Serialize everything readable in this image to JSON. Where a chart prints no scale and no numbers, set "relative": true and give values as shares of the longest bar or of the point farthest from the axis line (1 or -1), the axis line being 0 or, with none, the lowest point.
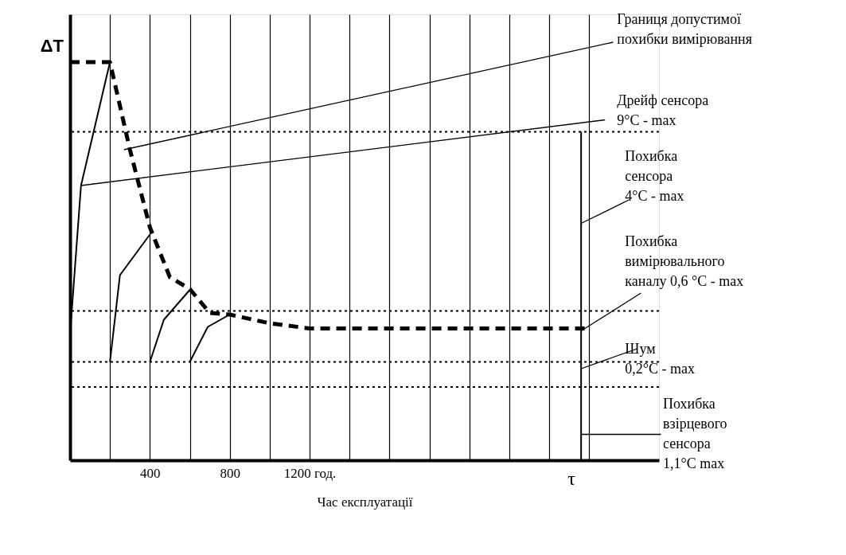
{
  "chart_data": {
    "type": "line",
    "relative": true,
    "xlabel": "Час експлуатації",
    "ylabel": "ΔT",
    "xlim": [
      0,
      2950
    ],
    "xticks": [
      {
        "value": 200,
        "label": null
      },
      400,
      {
        "value": 600,
        "label": null
      },
      800,
      {
        "value": 1000,
        "label": null
      },
      {
        "value": 1200,
        "label": "1200 год."
      },
      {
        "value": 1400,
        "label": null
      },
      {
        "value": 1600,
        "label": null
      },
      {
        "value": 1800,
        "label": null
      },
      {
        "value": 2000,
        "label": null
      },
      {
        "value": 2200,
        "label": null
      },
      {
        "value": 2400,
        "label": null
      },
      {
        "value": 2600,
        "label": null
      }
    ],
    "grid": "x",
    "series": [
      {
        "color": "#000000",
        "line_style": "dashed",
        "x": [
          0,
          200,
          300,
          400,
          500,
          600,
          700,
          800,
          1000,
          1200,
          1400,
          2600
        ],
        "values": [
          1,
          1,
          0.78,
          0.585,
          0.46,
          0.43,
          0.37,
          0.366,
          0.344,
          0.331,
          0.331,
          0.331
        ]
      },
      {
        "color": "#000000",
        "line_style": "solid",
        "x": [
          0,
          55,
          200
        ],
        "values": [
          0.316,
          0.69,
          1
        ]
      },
      {
        "color": "#000000",
        "line_style": "solid",
        "x": [
          200,
          250,
          400
        ],
        "values": [
          0.247,
          0.465,
          0.567
        ]
      },
      {
        "color": "#000000",
        "line_style": "solid",
        "x": [
          400,
          470,
          600
        ],
        "values": [
          0.247,
          0.353,
          0.428
        ]
      },
      {
        "color": "#000000",
        "line_style": "solid",
        "x": [
          600,
          690,
          800
        ],
        "values": [
          0.247,
          0.335,
          0.366
        ]
      },
      {
        "color": "#000000",
        "line_style": "solid",
        "x": [
          2560,
          2560
        ],
        "values": [
          0,
          0.825
        ]
      }
    ],
    "ref_lines": [
      {
        "axis": "y",
        "value": 0.825,
        "line_style": "dotted",
        "color": "#000000"
      },
      {
        "axis": "y",
        "value": 0.375,
        "line_style": "dotted",
        "color": "#000000"
      },
      {
        "axis": "y",
        "value": 0.247,
        "line_style": "dotted",
        "color": "#000000"
      },
      {
        "axis": "y",
        "value": 0.184,
        "line_style": "dotted",
        "color": "#000000"
      }
    ],
    "annotations": [
      {
        "text": "Границя допустимої\nпохибки вимірювання",
        "x": 270,
        "y": 0.78
      },
      {
        "text": "Дрейф сенсора\n9°C - max",
        "x": 55,
        "y": 0.69
      },
      {
        "text": "Похибка\nсенсора\n4°C - max",
        "x": 2560,
        "y": 0.595
      },
      {
        "text": "Похибка\nвимірювального\nканалу 0,6 °C - max",
        "x": 2560,
        "y": 0.325
      },
      {
        "text": "Шум\n0,2°C - max",
        "x": 2560,
        "y": 0.23
      },
      {
        "text": "Похибка\nвзірцевого\nсенсора\n1,1°C max",
        "x": 2560,
        "y": 0.065
      },
      "τ"
    ]
  }
}
